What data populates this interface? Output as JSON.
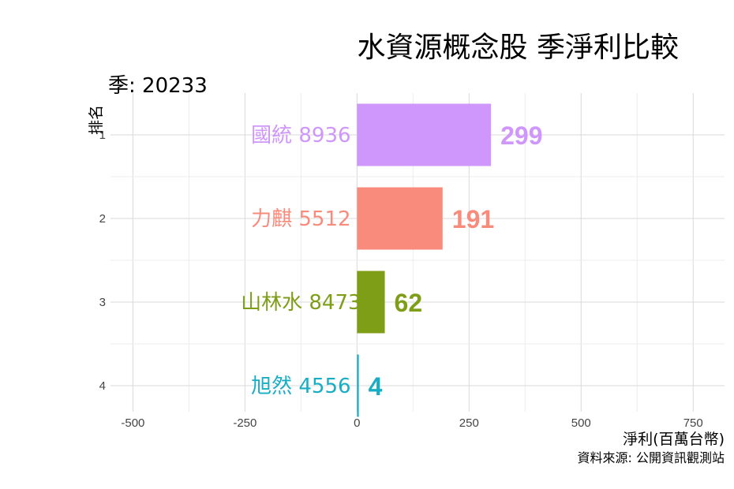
{
  "chart_data": {
    "type": "bar",
    "orientation": "horizontal",
    "title": "水資源概念股 季淨利比較",
    "subtitle": "季: 20233",
    "xlabel": "淨利(百萬台幣)",
    "ylabel": "排名",
    "caption": "資料來源: 公開資訊觀測站",
    "xlim": [
      -550,
      820
    ],
    "xticks": [
      -500,
      -250,
      0,
      250,
      500,
      750
    ],
    "grid": true,
    "legend": "none",
    "bars": [
      {
        "rank": "1",
        "label": "國統 8936",
        "value": 299,
        "value_label": "299",
        "color": "#cf96fb"
      },
      {
        "rank": "2",
        "label": "力麒 5512",
        "value": 191,
        "value_label": "191",
        "color": "#f88b7c"
      },
      {
        "rank": "3",
        "label": "山林水 8473",
        "value": 62,
        "value_label": "62",
        "color": "#7f9e18"
      },
      {
        "rank": "4",
        "label": "旭然 4556",
        "value": 4,
        "value_label": "4",
        "color": "#17adc5"
      }
    ]
  }
}
